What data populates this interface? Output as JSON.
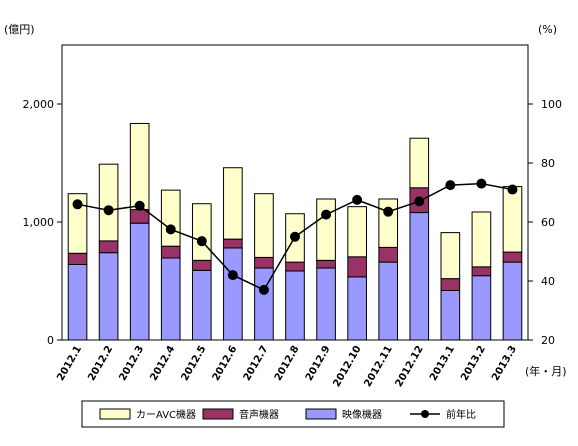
{
  "chart_data": {
    "type": "bar",
    "stacked": true,
    "categories": [
      "2012.1",
      "2012.2",
      "2012.3",
      "2012.4",
      "2012.5",
      "2012.6",
      "2012.7",
      "2012.8",
      "2012.9",
      "2012.10",
      "2012.11",
      "2012.12",
      "2013.1",
      "2013.2",
      "2013.3"
    ],
    "series": [
      {
        "name": "映像機器",
        "type": "bar",
        "axis": "left",
        "color": "#9999ff",
        "values": [
          640,
          740,
          990,
          695,
          590,
          780,
          610,
          585,
          610,
          535,
          660,
          1080,
          420,
          545,
          660
        ]
      },
      {
        "name": "音声機器",
        "type": "bar",
        "axis": "left",
        "color": "#993366",
        "values": [
          95,
          100,
          115,
          100,
          85,
          75,
          90,
          75,
          65,
          170,
          125,
          210,
          100,
          75,
          85
        ]
      },
      {
        "name": "カーAVC機器",
        "type": "bar",
        "axis": "left",
        "color": "#ffffcc",
        "values": [
          505,
          650,
          730,
          475,
          480,
          605,
          540,
          410,
          520,
          425,
          410,
          420,
          390,
          465,
          555
        ]
      },
      {
        "name": "前年比",
        "type": "line",
        "axis": "right",
        "color": "#000000",
        "values": [
          66,
          64,
          65.5,
          57.5,
          53.5,
          42,
          37,
          55,
          62.5,
          67.5,
          63.5,
          67,
          72.5,
          73,
          71
        ]
      }
    ],
    "left_axis": {
      "unit": "(億円)",
      "min": 0,
      "max": 2500,
      "ticks": [
        0,
        1000,
        2000
      ],
      "tick_labels": [
        "0",
        "1,000",
        "2,000"
      ]
    },
    "right_axis": {
      "unit": "(%)",
      "min": 20,
      "max": 120,
      "ticks": [
        20,
        40,
        60,
        80,
        100
      ],
      "tick_labels": [
        "20",
        "40",
        "60",
        "80",
        "100"
      ]
    },
    "xlabel": "(年・月)",
    "grid": false,
    "legend_position": "bottom"
  }
}
